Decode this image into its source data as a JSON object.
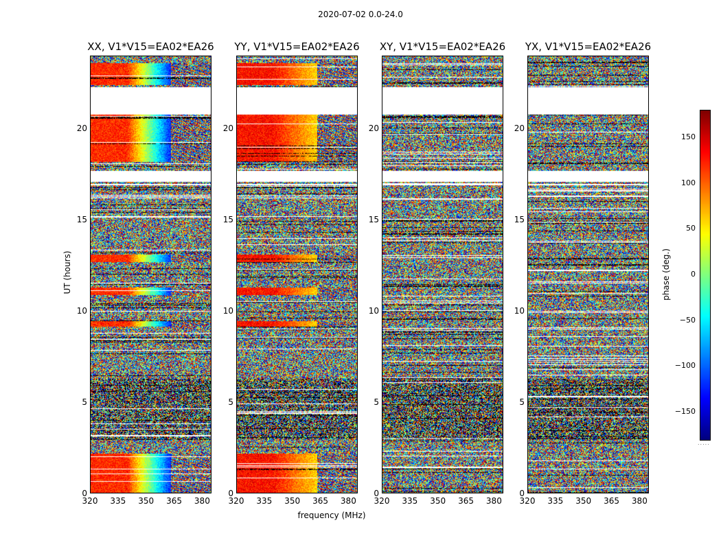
{
  "figure": {
    "suptitle": "2020-07-02 0.0-24.0",
    "ylabel": "UT (hours)",
    "xlabel": "frequency (MHz)",
    "colorbar_label": "phase (deg.)"
  },
  "chart_data": {
    "type": "heatmap",
    "title": "2020-07-02 0.0-24.0",
    "xlabel": "frequency (MHz)",
    "ylabel": "UT (hours)",
    "xlim": [
      320,
      385
    ],
    "ylim": [
      0,
      24
    ],
    "x_ticks": [
      "320",
      "335",
      "350",
      "365",
      "380"
    ],
    "x_tick_values": [
      320,
      335,
      350,
      365,
      380
    ],
    "y_ticks": [
      "0",
      "5",
      "10",
      "15",
      "20"
    ],
    "y_tick_values": [
      0,
      5,
      10,
      15,
      20
    ],
    "colorbar": {
      "label": "phase (deg.)",
      "range": [
        -180,
        180
      ],
      "ticks": [
        "150",
        "100",
        "50",
        "0",
        "−50",
        "−100",
        "−150"
      ],
      "tick_values": [
        150,
        100,
        50,
        0,
        -50,
        -100,
        -150
      ],
      "colormap": "jet"
    },
    "flagged_intervals_hours": [
      [
        16.9,
        17.0
      ],
      [
        17.1,
        17.7
      ],
      [
        20.8,
        22.3
      ]
    ],
    "panels": [
      {
        "title": "XX, V1*V15=EA02*EA26",
        "pol": "XX",
        "coherent_phase_deg": {
          "low_band": 120,
          "high_band": -120
        }
      },
      {
        "title": "YY, V1*V15=EA02*EA26",
        "pol": "YY",
        "coherent_phase_deg": {
          "low_band": 130,
          "high_band": 60
        }
      },
      {
        "title": "XY, V1*V15=EA02*EA26",
        "pol": "XY",
        "coherent_phase_deg": null
      },
      {
        "title": "YX, V1*V15=EA02*EA26",
        "pol": "YX",
        "coherent_phase_deg": null
      }
    ]
  }
}
